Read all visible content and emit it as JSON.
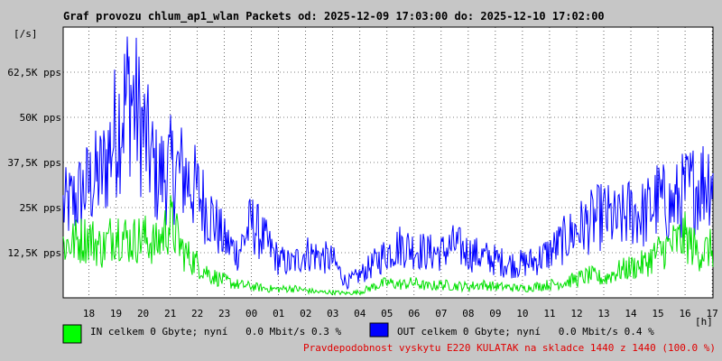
{
  "chart_data": {
    "type": "area",
    "title": "Graf provozu chlum_ap1_wlan Packets od: 2025-12-09 17:03:00 do: 2025-12-10 17:02:00",
    "y_unit_label": "[/s]",
    "x_unit_label": "[h]",
    "y_ticks": [
      {
        "value": 12500,
        "label": "12,5K pps"
      },
      {
        "value": 25000,
        "label": "25K pps"
      },
      {
        "value": 37500,
        "label": "37,5K pps"
      },
      {
        "value": 50000,
        "label": "50K pps"
      },
      {
        "value": 62500,
        "label": "62,5K pps"
      }
    ],
    "ylim": [
      0,
      75000
    ],
    "x_ticks": [
      "18",
      "19",
      "20",
      "21",
      "22",
      "23",
      "00",
      "01",
      "02",
      "03",
      "04",
      "05",
      "06",
      "07",
      "08",
      "09",
      "10",
      "11",
      "12",
      "13",
      "14",
      "15",
      "16",
      "17"
    ],
    "x_hours": [
      17.05,
      41.03
    ],
    "grid": true,
    "series": [
      {
        "name": "IN",
        "color": "#00e000",
        "hours": [
          17.1,
          17.5,
          18.0,
          18.5,
          19.0,
          19.5,
          20.0,
          20.5,
          21.0,
          21.5,
          22.0,
          22.5,
          23.0,
          23.5,
          24.0,
          24.5,
          25.0,
          25.5,
          26.0,
          26.5,
          27.0,
          27.5,
          28.0,
          28.5,
          29.0,
          29.5,
          30.0,
          30.5,
          31.0,
          31.5,
          32.0,
          32.5,
          33.0,
          33.5,
          34.0,
          34.5,
          35.0,
          35.5,
          36.0,
          36.5,
          37.0,
          37.5,
          38.0,
          38.5,
          39.0,
          39.5,
          40.0,
          40.5,
          41.0
        ],
        "values": [
          14000,
          15000,
          16000,
          13000,
          18000,
          15000,
          16000,
          14000,
          20000,
          12000,
          9000,
          6000,
          4500,
          3500,
          3000,
          2500,
          2300,
          2500,
          2000,
          1500,
          1500,
          1200,
          1500,
          3000,
          4000,
          3500,
          4000,
          3000,
          3500,
          3200,
          3000,
          3500,
          3000,
          2800,
          2500,
          3000,
          3500,
          4000,
          5000,
          6000,
          5000,
          7000,
          8000,
          9000,
          12000,
          14000,
          16000,
          12000,
          13000
        ]
      },
      {
        "name": "OUT",
        "color": "#0000ff",
        "hours": [
          17.1,
          17.5,
          18.0,
          18.5,
          19.0,
          19.5,
          20.0,
          20.5,
          21.0,
          21.5,
          22.0,
          22.5,
          23.0,
          23.5,
          24.0,
          24.5,
          25.0,
          25.5,
          26.0,
          26.5,
          27.0,
          27.5,
          28.0,
          28.5,
          29.0,
          29.5,
          30.0,
          30.5,
          31.0,
          31.5,
          32.0,
          32.5,
          33.0,
          33.5,
          34.0,
          34.5,
          35.0,
          35.5,
          36.0,
          36.5,
          37.0,
          37.5,
          38.0,
          38.5,
          39.0,
          39.5,
          40.0,
          40.5,
          41.0
        ],
        "values": [
          24000,
          26000,
          30000,
          33000,
          45000,
          55000,
          44000,
          32000,
          34000,
          33000,
          28000,
          22000,
          15000,
          12000,
          20000,
          15000,
          10000,
          9000,
          12000,
          11000,
          10000,
          4000,
          6000,
          9000,
          12000,
          14000,
          13000,
          12000,
          12000,
          14000,
          12000,
          11000,
          10000,
          9000,
          9000,
          10000,
          12000,
          15000,
          18000,
          20000,
          22000,
          20000,
          23000,
          22000,
          26000,
          24000,
          28000,
          30000,
          33000
        ]
      }
    ],
    "legend": [
      {
        "color": "#00ff00",
        "text": "IN celkem 0 Gbyte; nyní   0.0 Mbit/s 0.3 %"
      },
      {
        "color": "#0000ff",
        "text": "OUT celkem 0 Gbyte; nyní   0.0 Mbit/s 0.4 %"
      }
    ],
    "footer": "Pravdepodobnost vyskytu E220 KULATAK na skladce 1440 z 1440 (100.0 %)"
  }
}
